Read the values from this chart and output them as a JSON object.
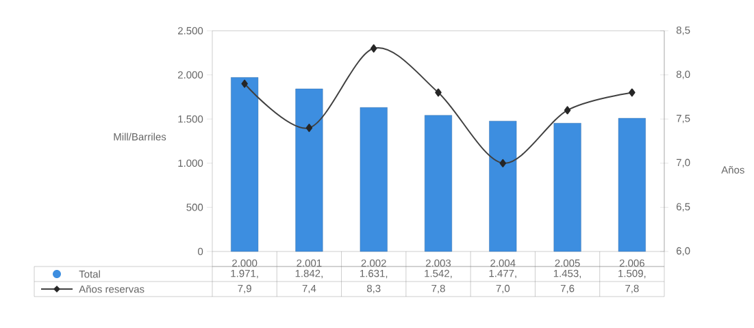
{
  "chart_data": {
    "type": "bar",
    "ylabel": "Mill/Barriles",
    "y2label": "Años",
    "categories": [
      "2.000",
      "2.001",
      "2.002",
      "2.003",
      "2.004",
      "2.005",
      "2.006"
    ],
    "series": [
      {
        "name": "Total",
        "color": "#3d8ee0",
        "values": [
          1971,
          1842,
          1631,
          1542,
          1477,
          1453,
          1509
        ],
        "value_labels": [
          "1.971,",
          "1.842,",
          "1.631,",
          "1.542,",
          "1.477,",
          "1.453,",
          "1.509,"
        ]
      },
      {
        "name": "Años reservas",
        "type": "line",
        "axis": "y2",
        "color": "#404040",
        "marker": "diamond",
        "values": [
          7.9,
          7.4,
          8.3,
          7.8,
          7.0,
          7.6,
          7.8
        ],
        "value_labels": [
          "7,9",
          "7,4",
          "8,3",
          "7,8",
          "7,0",
          "7,6",
          "7,8"
        ]
      }
    ],
    "ylim": [
      0,
      2500
    ],
    "yticks": [
      {
        "value": 0,
        "label": "0"
      },
      {
        "value": 500,
        "label": "500"
      },
      {
        "value": 1000,
        "label": "1.000"
      },
      {
        "value": 1500,
        "label": "1.500"
      },
      {
        "value": 2000,
        "label": "2.000"
      },
      {
        "value": 2500,
        "label": "2.500"
      }
    ],
    "y2lim": [
      6,
      8.5
    ],
    "y2ticks": [
      {
        "value": 6,
        "label": "6,0"
      },
      {
        "value": 6.5,
        "label": "6,5"
      },
      {
        "value": 7,
        "label": "7,0"
      },
      {
        "value": 7.5,
        "label": "7,5"
      },
      {
        "value": 8,
        "label": "8,0"
      },
      {
        "value": 8.5,
        "label": "8,5"
      }
    ],
    "legend": "bottom left"
  }
}
